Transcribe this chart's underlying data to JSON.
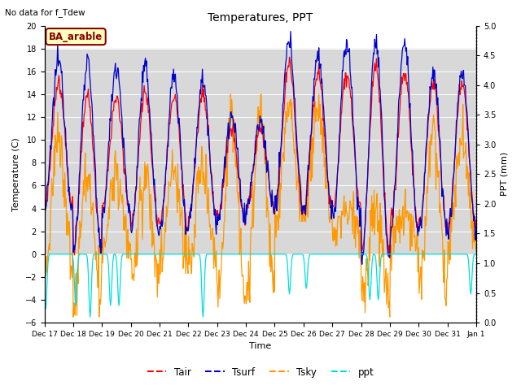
{
  "title": "Temperatures, PPT",
  "no_data_text": "No data for f_Tdew",
  "box_label": "BA_arable",
  "xlabel": "Time",
  "ylabel_left": "Temperature (C)",
  "ylabel_right": "PPT (mm)",
  "ylim_left": [
    -6,
    20
  ],
  "ylim_right": [
    0.0,
    5.0
  ],
  "yticks_left": [
    -6,
    -4,
    -2,
    0,
    2,
    4,
    6,
    8,
    10,
    12,
    14,
    16,
    18,
    20
  ],
  "yticks_right": [
    0.0,
    0.5,
    1.0,
    1.5,
    2.0,
    2.5,
    3.0,
    3.5,
    4.0,
    4.5,
    5.0
  ],
  "gray_band_low": 0,
  "gray_band_high": 18,
  "tair_color": "#ff0000",
  "tsurf_color": "#0000cc",
  "tsky_color": "#ff9900",
  "ppt_color": "#00dddd",
  "legend_labels": [
    "Tair",
    "Tsurf",
    "Tsky",
    "ppt"
  ],
  "xtick_labels": [
    "Dec 17",
    "Dec 18",
    "Dec 19",
    "Dec 20",
    "Dec 21",
    "Dec 22",
    "Dec 23",
    "Dec 24",
    "Dec 25",
    "Dec 26",
    "Dec 27",
    "Dec 28",
    "Dec 29",
    "Dec 30",
    "Dec 31",
    "Jan 1"
  ],
  "n_points": 720,
  "n_days": 15
}
